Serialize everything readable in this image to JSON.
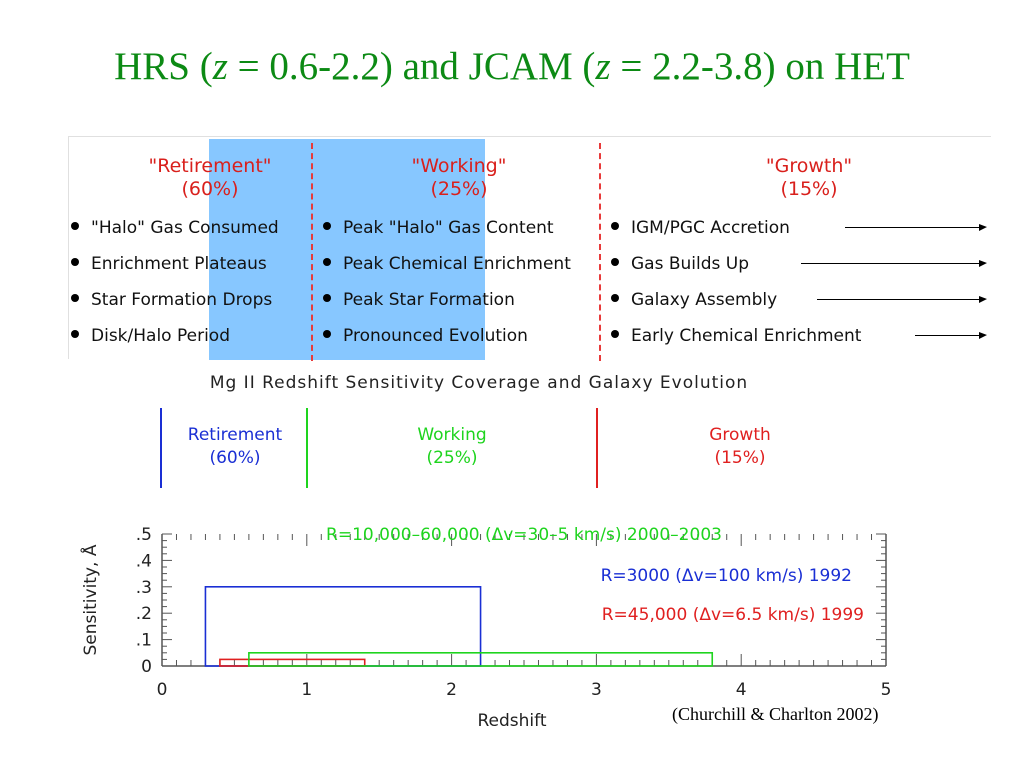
{
  "slide": {
    "title_pre": "HRS (",
    "title_z1": "z",
    "title_mid1": " = 0.6-2.2) and JCAM (",
    "title_z2": "z",
    "title_mid2": " = 2.2-3.8) on HET",
    "credit": "(Churchill & Charlton 2002)"
  },
  "phases": [
    {
      "title": "\"Retirement\"",
      "pct": "(60%)",
      "items": [
        "\"Halo\" Gas Consumed",
        "Enrichment Plateaus",
        "Star Formation Drops",
        "Disk/Halo Period"
      ]
    },
    {
      "title": "\"Working\"",
      "pct": "(25%)",
      "items": [
        "Peak \"Halo\" Gas Content",
        "Peak Chemical Enrichment",
        "Peak Star Formation",
        "Pronounced Evolution"
      ]
    },
    {
      "title": "\"Growth\"",
      "pct": "(15%)",
      "items": [
        "IGM/PGC Accretion",
        "Gas Builds Up",
        "Galaxy Assembly",
        "Early Chemical Enrichment"
      ]
    }
  ],
  "coverage": {
    "heading": "Mg II Redshift Sensitivity Coverage and Galaxy Evolution",
    "bands": [
      {
        "label": "Retirement",
        "pct": "(60%)",
        "color": "#1a2fd4"
      },
      {
        "label": "Working",
        "pct": "(25%)",
        "color": "#1ed41e"
      },
      {
        "label": "Growth",
        "pct": "(15%)",
        "color": "#e02020"
      }
    ]
  },
  "colors": {
    "title_green": "#0c8a14",
    "highlight_blue": "#87c7ff",
    "dash_red": "#e83a3a"
  },
  "chart_data": {
    "type": "bar",
    "xlabel": "Redshift",
    "ylabel": "Sensitivity, Å",
    "xlim": [
      0,
      5
    ],
    "ylim": [
      0,
      0.5
    ],
    "xticks": [
      "0",
      "1",
      "2",
      "3",
      "4",
      "5"
    ],
    "yticks": [
      "0",
      ".1",
      ".2",
      ".3",
      ".4",
      ".5"
    ],
    "series": [
      {
        "name": "R=3000 (Δv=100 km/s) 1992",
        "color": "#1a2fd4",
        "x": [
          0.3,
          2.2
        ],
        "value": 0.3
      },
      {
        "name": "R=45,000 (Δv=6.5 km/s) 1999",
        "color": "#e02020",
        "x": [
          0.4,
          1.4
        ],
        "value": 0.025
      },
      {
        "name": "R=10,000–60,000 (Δv=30–5 km/s) 2000–2003",
        "color": "#1ed41e",
        "x": [
          0.6,
          3.8
        ],
        "value": 0.05
      }
    ]
  }
}
